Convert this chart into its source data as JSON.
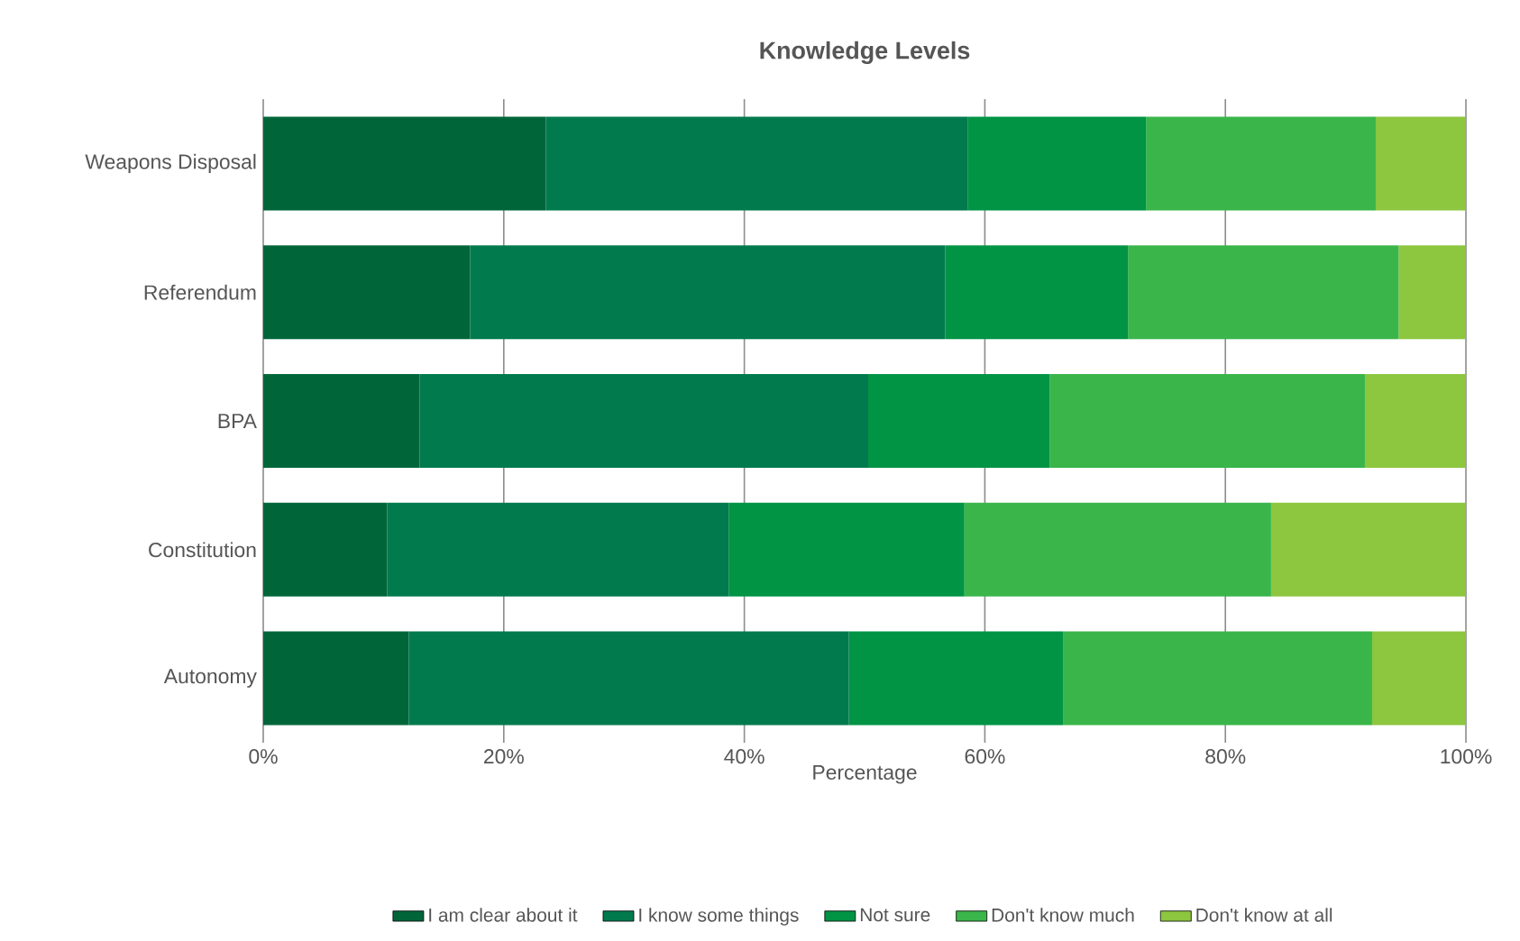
{
  "chart_data": {
    "type": "bar",
    "orientation": "horizontal",
    "stacked": true,
    "title": "Knowledge Levels",
    "xlabel": "Percentage",
    "categories": [
      "Weapons Disposal",
      "Referendum",
      "BPA",
      "Constitution",
      "Autonomy"
    ],
    "series": [
      {
        "name": "I am clear about it",
        "color": "#00663a",
        "values": [
          23.5,
          17.2,
          13.0,
          10.3,
          12.1
        ]
      },
      {
        "name": "I know some things",
        "color": "#017a4e",
        "values": [
          35.1,
          39.5,
          37.3,
          28.4,
          36.6
        ]
      },
      {
        "name": "Not sure",
        "color": "#009444",
        "values": [
          14.8,
          15.2,
          15.1,
          19.6,
          17.8
        ]
      },
      {
        "name": "Don't know much",
        "color": "#3ab54a",
        "values": [
          19.1,
          22.5,
          26.2,
          25.5,
          25.7
        ]
      },
      {
        "name": "Don't know at all",
        "color": "#8dc63f",
        "values": [
          7.5,
          5.6,
          8.4,
          16.2,
          7.8
        ]
      }
    ],
    "xlim": [
      0,
      100
    ],
    "xticks": [
      {
        "value": 0,
        "label": "0%"
      },
      {
        "value": 20,
        "label": "20%"
      },
      {
        "value": 40,
        "label": "40%"
      },
      {
        "value": 60,
        "label": "60%"
      },
      {
        "value": 80,
        "label": "80%"
      },
      {
        "value": 100,
        "label": "100%"
      }
    ],
    "grid": "x",
    "legend": "bottom"
  }
}
